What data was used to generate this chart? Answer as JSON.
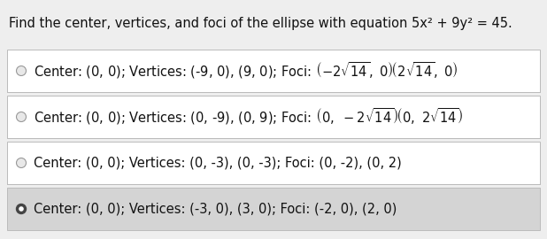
{
  "title": "Find the center, vertices, and foci of the ellipse with equation 5x² + 9y² = 45.",
  "options": [
    {
      "text_plain": "Center: (0, 0); Vertices: (-9, 0), (9, 0); Foci: ",
      "text_math": "$(-2\\sqrt{14},\\ 0)(2\\sqrt{14},\\ 0)$",
      "has_math": true,
      "selected": false,
      "radio_filled": false
    },
    {
      "text_plain": "Center: (0, 0); Vertices: (0, -9), (0, 9); Foci: ",
      "text_math": "$(0,\\ -2\\sqrt{14})(0,\\ 2\\sqrt{14})$",
      "has_math": true,
      "selected": false,
      "radio_filled": false
    },
    {
      "text_plain": "Center: (0, 0); Vertices: (0, -3), (0, -3); Foci: (0, -2), (0, 2)",
      "text_math": null,
      "has_math": false,
      "selected": false,
      "radio_filled": false
    },
    {
      "text_plain": "Center: (0, 0); Vertices: (-3, 0), (3, 0); Foci: (-2, 0), (2, 0)",
      "text_math": null,
      "has_math": false,
      "selected": true,
      "radio_filled": true
    }
  ],
  "title_bg_color": "#eeeeee",
  "bg_color": "#eeeeee",
  "white_box_color": "#ffffff",
  "selected_box_color": "#d4d4d4",
  "border_color": "#bbbbbb",
  "title_color": "#111111",
  "text_color": "#111111",
  "radio_unsel_edge_color": "#999999",
  "radio_unsel_face_color": "#e8e8e8",
  "radio_sel_edge_color": "#444444",
  "radio_sel_face_color": "#444444",
  "font_size": 10.5,
  "title_font_size": 10.5
}
